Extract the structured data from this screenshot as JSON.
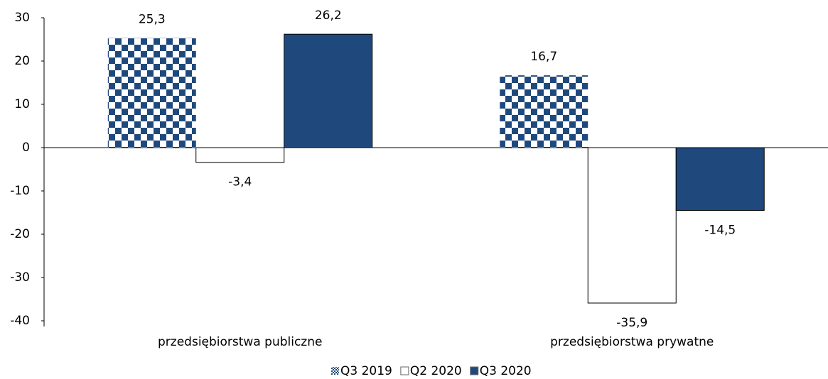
{
  "chart_data": {
    "type": "bar",
    "categories": [
      "przedsiębiorstwa publiczne",
      "przedsiębiorstwa prywatne"
    ],
    "series": [
      {
        "name": "Q3 2019",
        "color": "#1f497d",
        "pattern": "checker",
        "values": [
          25.3,
          16.7
        ],
        "value_labels": [
          "25,3",
          "16,7"
        ]
      },
      {
        "name": "Q2 2020",
        "color": "#ffffff",
        "values": [
          -3.4,
          -35.9
        ],
        "value_labels": [
          "-3,4",
          "-35,9"
        ]
      },
      {
        "name": "Q3 2020",
        "color": "#1f497d",
        "values": [
          26.2,
          -14.5
        ],
        "value_labels": [
          "26,2",
          "-14,5"
        ]
      }
    ],
    "ylim": [
      -40,
      30
    ],
    "yticks": [
      -40,
      -30,
      -20,
      -10,
      0,
      10,
      20,
      30
    ],
    "legend": "bottom"
  }
}
